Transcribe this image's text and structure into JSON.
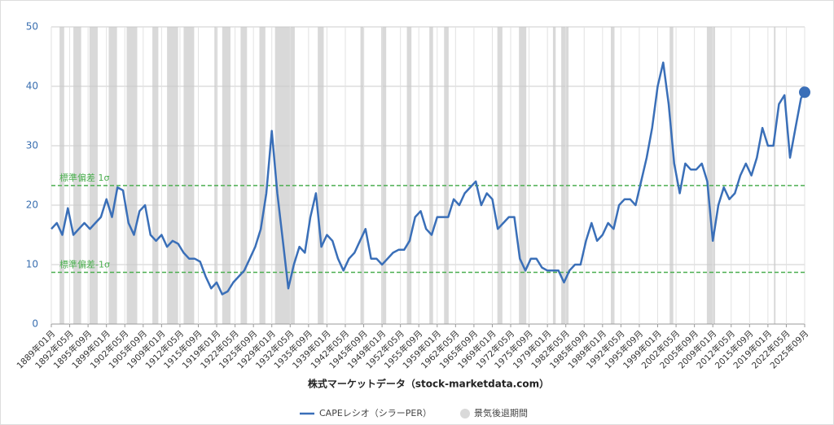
{
  "chart_data": {
    "type": "line",
    "x_title": "株式マーケットデータ（stock-marketdata.com）",
    "x": [
      "1889年01月",
      "1890年01月",
      "1891年01月",
      "1892年01月",
      "1893年01月",
      "1894年01月",
      "1895年01月",
      "1896年01月",
      "1897年01月",
      "1898年01月",
      "1899年01月",
      "1900年01月",
      "1901年01月",
      "1902年01月",
      "1903年01月",
      "1904年01月",
      "1905年01月",
      "1906年01月",
      "1907年01月",
      "1908年01月",
      "1909年01月",
      "1910年01月",
      "1911年01月",
      "1912年01月",
      "1913年01月",
      "1914年01月",
      "1915年01月",
      "1916年01月",
      "1917年01月",
      "1918年01月",
      "1919年01月",
      "1920年01月",
      "1921年01月",
      "1922年01月",
      "1923年01月",
      "1924年01月",
      "1925年01月",
      "1926年01月",
      "1927年01月",
      "1928年01月",
      "1929年01月",
      "1930年01月",
      "1931年01月",
      "1932年01月",
      "1933年01月",
      "1934年01月",
      "1935年01月",
      "1936年01月",
      "1937年01月",
      "1938年01月",
      "1939年01月",
      "1940年01月",
      "1941年01月",
      "1942年01月",
      "1943年01月",
      "1944年01月",
      "1945年01月",
      "1946年01月",
      "1947年01月",
      "1948年01月",
      "1949年01月",
      "1950年01月",
      "1951年01月",
      "1952年01月",
      "1953年01月",
      "1954年01月",
      "1955年01月",
      "1956年01月",
      "1957年01月",
      "1958年01月",
      "1959年01月",
      "1960年01月",
      "1961年01月",
      "1962年01月",
      "1963年01月",
      "1964年01月",
      "1965年01月",
      "1966年01月",
      "1967年01月",
      "1968年01月",
      "1969年01月",
      "1970年01月",
      "1971年01月",
      "1972年01月",
      "1973年01月",
      "1974年01月",
      "1975年01月",
      "1976年01月",
      "1977年01月",
      "1978年01月",
      "1979年01月",
      "1980年01月",
      "1981年01月",
      "1982年01月",
      "1983年01月",
      "1984年01月",
      "1985年01月",
      "1986年01月",
      "1987年01月",
      "1988年01月",
      "1989年01月",
      "1990年01月",
      "1991年01月",
      "1992年01月",
      "1993年01月",
      "1994年01月",
      "1995年01月",
      "1996年01月",
      "1997年01月",
      "1998年01月",
      "1999年01月",
      "2000年01月",
      "2001年01月",
      "2002年01月",
      "2003年01月",
      "2004年01月",
      "2005年01月",
      "2006年01月",
      "2007年01月",
      "2008年01月",
      "2009年01月",
      "2010年01月",
      "2011年01月",
      "2012年01月",
      "2013年01月",
      "2014年01月",
      "2015年01月",
      "2016年01月",
      "2017年01月",
      "2018年01月",
      "2019年01月",
      "2020年01月",
      "2021年01月",
      "2022年01月",
      "2023年01月",
      "2024年01月",
      "2025年01月",
      "2025年09月"
    ],
    "series": [
      {
        "name": "CAPEレシオ（シラーPER）",
        "color": "#3a6fb8",
        "values": [
          16,
          17,
          15,
          19.5,
          15,
          16,
          17,
          16,
          17,
          18,
          21,
          18,
          23,
          22.5,
          17,
          15,
          19,
          20,
          15,
          14,
          15,
          13,
          14,
          13.5,
          12,
          11,
          11,
          10.5,
          8,
          6,
          7,
          5,
          5.5,
          7,
          8,
          9,
          11,
          13,
          16,
          22,
          32.5,
          22,
          14,
          6,
          10,
          13,
          12,
          18,
          22,
          13,
          15,
          14,
          11,
          9,
          11,
          12,
          14,
          16,
          11,
          11,
          10,
          11,
          12,
          12.5,
          12.5,
          14,
          18,
          19,
          16,
          15,
          18,
          18,
          18,
          21,
          20,
          22,
          23,
          24,
          20,
          22,
          21,
          16,
          17,
          18,
          18,
          11,
          9,
          11,
          11,
          9.5,
          9,
          9,
          9,
          7,
          9,
          10,
          10,
          14,
          17,
          14,
          15,
          17,
          16,
          20,
          21,
          21,
          20,
          24,
          28,
          33,
          40,
          44,
          37,
          27,
          22,
          27,
          26,
          26,
          27,
          24,
          14,
          20,
          23,
          21,
          22,
          25,
          27,
          25,
          28,
          33,
          30,
          30,
          37,
          38.5,
          28,
          33,
          38,
          39
        ]
      }
    ],
    "recession_name": "景気後退期間",
    "recession_color": "#d9d9d9",
    "recessions": [
      [
        "1890年07月",
        "1891年05月"
      ],
      [
        "1893年01月",
        "1894年06月"
      ],
      [
        "1895年12月",
        "1897年06月"
      ],
      [
        "1899年06月",
        "1900年12月"
      ],
      [
        "1902年09月",
        "1904年08月"
      ],
      [
        "1907年05月",
        "1908年06月"
      ],
      [
        "1910年01月",
        "1912年01月"
      ],
      [
        "1913年01月",
        "1914年12月"
      ],
      [
        "1918年08月",
        "1919年03月"
      ],
      [
        "1920年01月",
        "1921年07月"
      ],
      [
        "1923年05月",
        "1924年07月"
      ],
      [
        "1926年10月",
        "1927年11月"
      ],
      [
        "1929年08月",
        "1933年03月"
      ],
      [
        "1937年05月",
        "1938年06月"
      ],
      [
        "1945年02月",
        "1945年10月"
      ],
      [
        "1948年11月",
        "1949年10月"
      ],
      [
        "1953年07月",
        "1954年05月"
      ],
      [
        "1957年08月",
        "1958年04月"
      ],
      [
        "1960年04月",
        "1961年02月"
      ],
      [
        "1969年12月",
        "1970年11月"
      ],
      [
        "1973年11月",
        "1975年03月"
      ],
      [
        "1980年01月",
        "1980年07月"
      ],
      [
        "1981年07月",
        "1982年11月"
      ],
      [
        "1990年07月",
        "1991年03月"
      ],
      [
        "2001年03月",
        "2001年11月"
      ],
      [
        "2007年12月",
        "2009年06月"
      ],
      [
        "2020年02月",
        "2020年04月"
      ]
    ],
    "reference_lines": [
      {
        "label": "標準偏差 1σ",
        "value": 23.3,
        "color": "#4caf50"
      },
      {
        "label": "標準偏差-1σ",
        "value": 8.7,
        "color": "#4caf50"
      }
    ],
    "xlim": [
      "1889年01月",
      "2025年09月"
    ],
    "xticks": [
      "1889年01月",
      "1892年05月",
      "1895年09月",
      "1899年01月",
      "1902年05月",
      "1905年09月",
      "1909年01月",
      "1912年05月",
      "1915年09月",
      "1919年01月",
      "1922年05月",
      "1925年09月",
      "1929年01月",
      "1932年05月",
      "1935年09月",
      "1939年01月",
      "1942年05月",
      "1945年09月",
      "1949年01月",
      "1952年05月",
      "1955年09月",
      "1959年01月",
      "1962年05月",
      "1965年09月",
      "1969年01月",
      "1972年05月",
      "1975年09月",
      "1979年01月",
      "1982年05月",
      "1985年09月",
      "1989年01月",
      "1992年05月",
      "1995年09月",
      "1999年01月",
      "2002年05月",
      "2005年09月",
      "2009年01月",
      "2012年05月",
      "2015年09月",
      "2019年01月",
      "2022年05月",
      "2025年09月"
    ],
    "ylim": [
      0,
      50
    ],
    "yticks": [
      0,
      10,
      20,
      30,
      40,
      50
    ],
    "grid": true,
    "legend": "bottom"
  }
}
